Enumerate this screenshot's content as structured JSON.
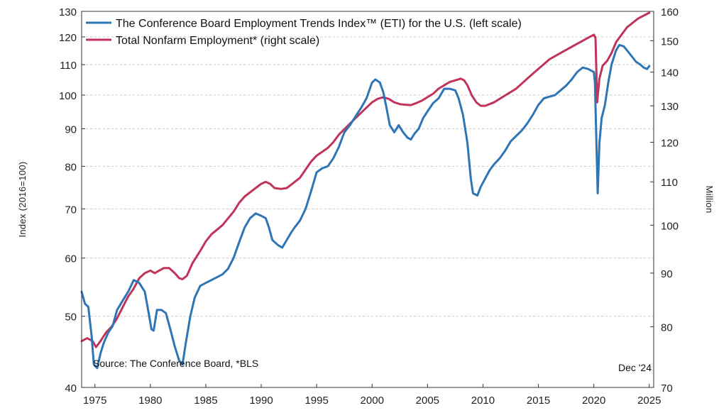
{
  "chart_data": {
    "type": "line",
    "legend_position": "top-left",
    "series": [
      {
        "name": "The Conference Board Employment Trends Index™ (ETI) for the U.S. (left scale)",
        "axis": "left",
        "color": "#2e75b6",
        "points": [
          [
            1973.8,
            54.0
          ],
          [
            1974.1,
            52.0
          ],
          [
            1974.4,
            51.5
          ],
          [
            1974.7,
            47.0
          ],
          [
            1974.9,
            43.0
          ],
          [
            1975.2,
            42.5
          ],
          [
            1975.5,
            44.5
          ],
          [
            1975.8,
            46.0
          ],
          [
            1976.2,
            47.5
          ],
          [
            1976.6,
            48.5
          ],
          [
            1977.0,
            51.0
          ],
          [
            1977.5,
            52.5
          ],
          [
            1978.0,
            54.0
          ],
          [
            1978.5,
            56.0
          ],
          [
            1979.0,
            55.5
          ],
          [
            1979.5,
            54.0
          ],
          [
            1979.8,
            51.0
          ],
          [
            1980.1,
            48.0
          ],
          [
            1980.3,
            47.8
          ],
          [
            1980.6,
            51.0
          ],
          [
            1981.0,
            51.0
          ],
          [
            1981.4,
            50.5
          ],
          [
            1981.8,
            48.0
          ],
          [
            1982.2,
            45.5
          ],
          [
            1982.6,
            43.5
          ],
          [
            1982.9,
            43.0
          ],
          [
            1983.2,
            46.0
          ],
          [
            1983.6,
            50.0
          ],
          [
            1984.0,
            53.0
          ],
          [
            1984.5,
            55.0
          ],
          [
            1985.0,
            55.5
          ],
          [
            1985.5,
            56.0
          ],
          [
            1986.0,
            56.5
          ],
          [
            1986.5,
            57.0
          ],
          [
            1987.0,
            58.0
          ],
          [
            1987.5,
            60.0
          ],
          [
            1988.0,
            63.0
          ],
          [
            1988.5,
            66.0
          ],
          [
            1989.0,
            68.0
          ],
          [
            1989.5,
            69.0
          ],
          [
            1990.0,
            68.5
          ],
          [
            1990.4,
            68.0
          ],
          [
            1990.7,
            66.0
          ],
          [
            1991.0,
            63.5
          ],
          [
            1991.5,
            62.5
          ],
          [
            1991.9,
            62.0
          ],
          [
            1992.3,
            63.5
          ],
          [
            1992.7,
            65.0
          ],
          [
            1993.0,
            66.0
          ],
          [
            1993.5,
            67.5
          ],
          [
            1994.0,
            70.0
          ],
          [
            1994.5,
            74.0
          ],
          [
            1995.0,
            78.5
          ],
          [
            1995.5,
            79.5
          ],
          [
            1996.0,
            80.0
          ],
          [
            1996.5,
            82.0
          ],
          [
            1997.0,
            85.0
          ],
          [
            1997.5,
            89.0
          ],
          [
            1998.0,
            91.0
          ],
          [
            1998.5,
            93.5
          ],
          [
            1999.0,
            96.0
          ],
          [
            1999.5,
            99.0
          ],
          [
            2000.0,
            104.0
          ],
          [
            2000.3,
            105.0
          ],
          [
            2000.7,
            104.0
          ],
          [
            2001.0,
            101.0
          ],
          [
            2001.3,
            96.0
          ],
          [
            2001.6,
            91.0
          ],
          [
            2002.0,
            89.0
          ],
          [
            2002.4,
            91.0
          ],
          [
            2002.8,
            89.0
          ],
          [
            2003.2,
            87.5
          ],
          [
            2003.5,
            87.0
          ],
          [
            2003.8,
            88.5
          ],
          [
            2004.2,
            90.0
          ],
          [
            2004.6,
            93.0
          ],
          [
            2005.0,
            95.0
          ],
          [
            2005.5,
            97.5
          ],
          [
            2006.0,
            99.0
          ],
          [
            2006.5,
            102.0
          ],
          [
            2007.0,
            102.0
          ],
          [
            2007.5,
            101.5
          ],
          [
            2007.8,
            99.0
          ],
          [
            2008.2,
            94.0
          ],
          [
            2008.6,
            86.0
          ],
          [
            2008.9,
            77.0
          ],
          [
            2009.1,
            73.5
          ],
          [
            2009.5,
            73.0
          ],
          [
            2009.8,
            75.0
          ],
          [
            2010.2,
            77.0
          ],
          [
            2010.6,
            79.0
          ],
          [
            2011.0,
            80.5
          ],
          [
            2011.5,
            82.0
          ],
          [
            2012.0,
            84.0
          ],
          [
            2012.5,
            86.5
          ],
          [
            2013.0,
            88.0
          ],
          [
            2013.5,
            89.5
          ],
          [
            2014.0,
            91.5
          ],
          [
            2014.5,
            94.0
          ],
          [
            2015.0,
            97.0
          ],
          [
            2015.5,
            99.0
          ],
          [
            2016.0,
            99.5
          ],
          [
            2016.5,
            100.0
          ],
          [
            2017.0,
            101.5
          ],
          [
            2017.5,
            103.0
          ],
          [
            2018.0,
            105.0
          ],
          [
            2018.5,
            107.5
          ],
          [
            2019.0,
            109.0
          ],
          [
            2019.5,
            108.5
          ],
          [
            2020.0,
            107.5
          ],
          [
            2020.1,
            104.0
          ],
          [
            2020.2,
            90.0
          ],
          [
            2020.35,
            73.5
          ],
          [
            2020.5,
            86.0
          ],
          [
            2020.7,
            93.0
          ],
          [
            2021.0,
            97.0
          ],
          [
            2021.3,
            104.0
          ],
          [
            2021.6,
            110.0
          ],
          [
            2022.0,
            115.0
          ],
          [
            2022.3,
            117.0
          ],
          [
            2022.7,
            116.5
          ],
          [
            2023.0,
            115.0
          ],
          [
            2023.4,
            113.0
          ],
          [
            2023.8,
            111.0
          ],
          [
            2024.2,
            110.0
          ],
          [
            2024.5,
            109.0
          ],
          [
            2024.8,
            108.5
          ],
          [
            2025.0,
            109.5
          ]
        ]
      },
      {
        "name": "Total Nonfarm Employment* (right scale)",
        "axis": "right",
        "color": "#c0345a",
        "points": [
          [
            1973.8,
            77.5
          ],
          [
            1974.3,
            78.0
          ],
          [
            1974.8,
            77.5
          ],
          [
            1975.1,
            76.5
          ],
          [
            1975.5,
            77.5
          ],
          [
            1976.0,
            79.0
          ],
          [
            1976.5,
            80.0
          ],
          [
            1977.0,
            81.5
          ],
          [
            1977.5,
            83.5
          ],
          [
            1978.0,
            85.5
          ],
          [
            1978.5,
            87.0
          ],
          [
            1979.0,
            89.0
          ],
          [
            1979.5,
            90.0
          ],
          [
            1980.0,
            90.5
          ],
          [
            1980.4,
            90.0
          ],
          [
            1980.8,
            90.5
          ],
          [
            1981.2,
            91.0
          ],
          [
            1981.7,
            91.0
          ],
          [
            1982.2,
            90.0
          ],
          [
            1982.6,
            89.0
          ],
          [
            1982.9,
            88.8
          ],
          [
            1983.3,
            89.5
          ],
          [
            1983.8,
            92.0
          ],
          [
            1984.5,
            94.5
          ],
          [
            1985.0,
            96.5
          ],
          [
            1985.5,
            98.0
          ],
          [
            1986.0,
            99.0
          ],
          [
            1986.5,
            100.0
          ],
          [
            1987.0,
            101.5
          ],
          [
            1987.5,
            103.0
          ],
          [
            1988.0,
            105.0
          ],
          [
            1988.5,
            106.5
          ],
          [
            1989.0,
            107.5
          ],
          [
            1989.5,
            108.5
          ],
          [
            1990.0,
            109.5
          ],
          [
            1990.4,
            110.0
          ],
          [
            1990.8,
            109.5
          ],
          [
            1991.2,
            108.5
          ],
          [
            1991.8,
            108.3
          ],
          [
            1992.3,
            108.5
          ],
          [
            1992.8,
            109.5
          ],
          [
            1993.5,
            111.0
          ],
          [
            1994.0,
            113.0
          ],
          [
            1994.5,
            115.0
          ],
          [
            1995.0,
            116.5
          ],
          [
            1995.5,
            117.5
          ],
          [
            1996.0,
            118.5
          ],
          [
            1996.5,
            120.0
          ],
          [
            1997.0,
            122.0
          ],
          [
            1997.5,
            123.5
          ],
          [
            1998.0,
            125.0
          ],
          [
            1998.5,
            126.5
          ],
          [
            1999.0,
            128.0
          ],
          [
            1999.5,
            129.5
          ],
          [
            2000.0,
            131.0
          ],
          [
            2000.5,
            132.0
          ],
          [
            2001.0,
            132.5
          ],
          [
            2001.5,
            132.0
          ],
          [
            2002.0,
            131.0
          ],
          [
            2002.5,
            130.5
          ],
          [
            2003.0,
            130.3
          ],
          [
            2003.5,
            130.2
          ],
          [
            2004.0,
            130.8
          ],
          [
            2004.5,
            131.5
          ],
          [
            2005.0,
            132.5
          ],
          [
            2005.5,
            133.5
          ],
          [
            2006.0,
            135.0
          ],
          [
            2006.5,
            136.0
          ],
          [
            2007.0,
            137.0
          ],
          [
            2007.5,
            137.5
          ],
          [
            2008.0,
            138.0
          ],
          [
            2008.3,
            137.5
          ],
          [
            2008.6,
            136.0
          ],
          [
            2009.0,
            133.0
          ],
          [
            2009.4,
            131.0
          ],
          [
            2009.8,
            130.0
          ],
          [
            2010.2,
            130.0
          ],
          [
            2010.6,
            130.5
          ],
          [
            2011.0,
            131.0
          ],
          [
            2011.5,
            132.0
          ],
          [
            2012.0,
            133.0
          ],
          [
            2012.5,
            134.0
          ],
          [
            2013.0,
            135.0
          ],
          [
            2013.5,
            136.5
          ],
          [
            2014.0,
            138.0
          ],
          [
            2014.5,
            139.5
          ],
          [
            2015.0,
            141.0
          ],
          [
            2015.5,
            142.5
          ],
          [
            2016.0,
            144.0
          ],
          [
            2016.5,
            145.0
          ],
          [
            2017.0,
            146.0
          ],
          [
            2017.5,
            147.0
          ],
          [
            2018.0,
            148.0
          ],
          [
            2018.5,
            149.0
          ],
          [
            2019.0,
            150.0
          ],
          [
            2019.5,
            151.0
          ],
          [
            2020.0,
            152.0
          ],
          [
            2020.15,
            151.0
          ],
          [
            2020.3,
            131.0
          ],
          [
            2020.5,
            138.0
          ],
          [
            2020.8,
            142.0
          ],
          [
            2021.2,
            143.5
          ],
          [
            2021.6,
            146.0
          ],
          [
            2022.0,
            149.5
          ],
          [
            2022.5,
            152.0
          ],
          [
            2023.0,
            154.5
          ],
          [
            2023.5,
            156.0
          ],
          [
            2024.0,
            157.5
          ],
          [
            2024.5,
            158.5
          ],
          [
            2025.0,
            159.5
          ]
        ]
      }
    ],
    "x_range": [
      1973.8,
      2025.4
    ],
    "x_ticks": [
      1975,
      1980,
      1985,
      1990,
      1995,
      2000,
      2005,
      2010,
      2015,
      2020,
      2025
    ],
    "left_axis": {
      "label": "Index (2016=100)",
      "scale": "log",
      "range": [
        40,
        130
      ],
      "ticks": [
        40,
        50,
        60,
        70,
        80,
        90,
        100,
        110,
        120,
        130
      ]
    },
    "right_axis": {
      "label": "Million",
      "scale": "log",
      "range": [
        70,
        160
      ],
      "ticks": [
        70,
        80,
        90,
        100,
        110,
        120,
        130,
        140,
        150,
        160
      ]
    },
    "grid": true,
    "source_note": "Source: The Conference Board, *BLS",
    "date_note": "Dec '24"
  }
}
